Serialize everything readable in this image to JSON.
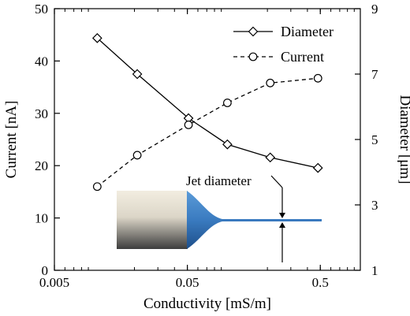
{
  "chart_data": {
    "type": "line",
    "title": "",
    "xlabel": "Conductivity [mS/m]",
    "ylabel_left": "Current [nA]",
    "ylabel_right": "Diameter [μm]",
    "x_scale": "log",
    "xlim": [
      0.005,
      1.0
    ],
    "ylim_left": [
      0,
      50
    ],
    "ylim_right": [
      1,
      9
    ],
    "x_ticks": [
      0.005,
      0.05,
      0.5
    ],
    "x_tick_labels": [
      "0.005",
      "0.05",
      "0.5"
    ],
    "y_left_ticks": [
      0,
      10,
      20,
      30,
      40,
      50
    ],
    "y_left_tick_labels": [
      "0",
      "10",
      "20",
      "30",
      "40",
      "50"
    ],
    "y_right_ticks": [
      1,
      3,
      5,
      7,
      9
    ],
    "y_right_tick_labels": [
      "1",
      "3",
      "5",
      "7",
      "9"
    ],
    "grid": false,
    "legend_position": "top-right",
    "series": [
      {
        "name": "Diameter",
        "axis": "right",
        "style": "solid",
        "marker": "diamond",
        "x": [
          0.0105,
          0.021,
          0.051,
          0.1,
          0.21,
          0.48
        ],
        "y": [
          8.1,
          7.0,
          5.65,
          4.85,
          4.45,
          4.13
        ]
      },
      {
        "name": "Current",
        "axis": "left",
        "style": "dashed",
        "marker": "circle",
        "x": [
          0.0105,
          0.021,
          0.051,
          0.1,
          0.21,
          0.48
        ],
        "y": [
          16,
          22,
          27.8,
          32,
          35.8,
          36.7
        ]
      }
    ],
    "annotations": [
      {
        "text": "Jet diameter"
      }
    ]
  },
  "colors": {
    "axis": "#000000",
    "jet": "#3a7bc0",
    "nozzle_light": "#ece7d9",
    "nozzle_dark": "#4a4a4a"
  }
}
